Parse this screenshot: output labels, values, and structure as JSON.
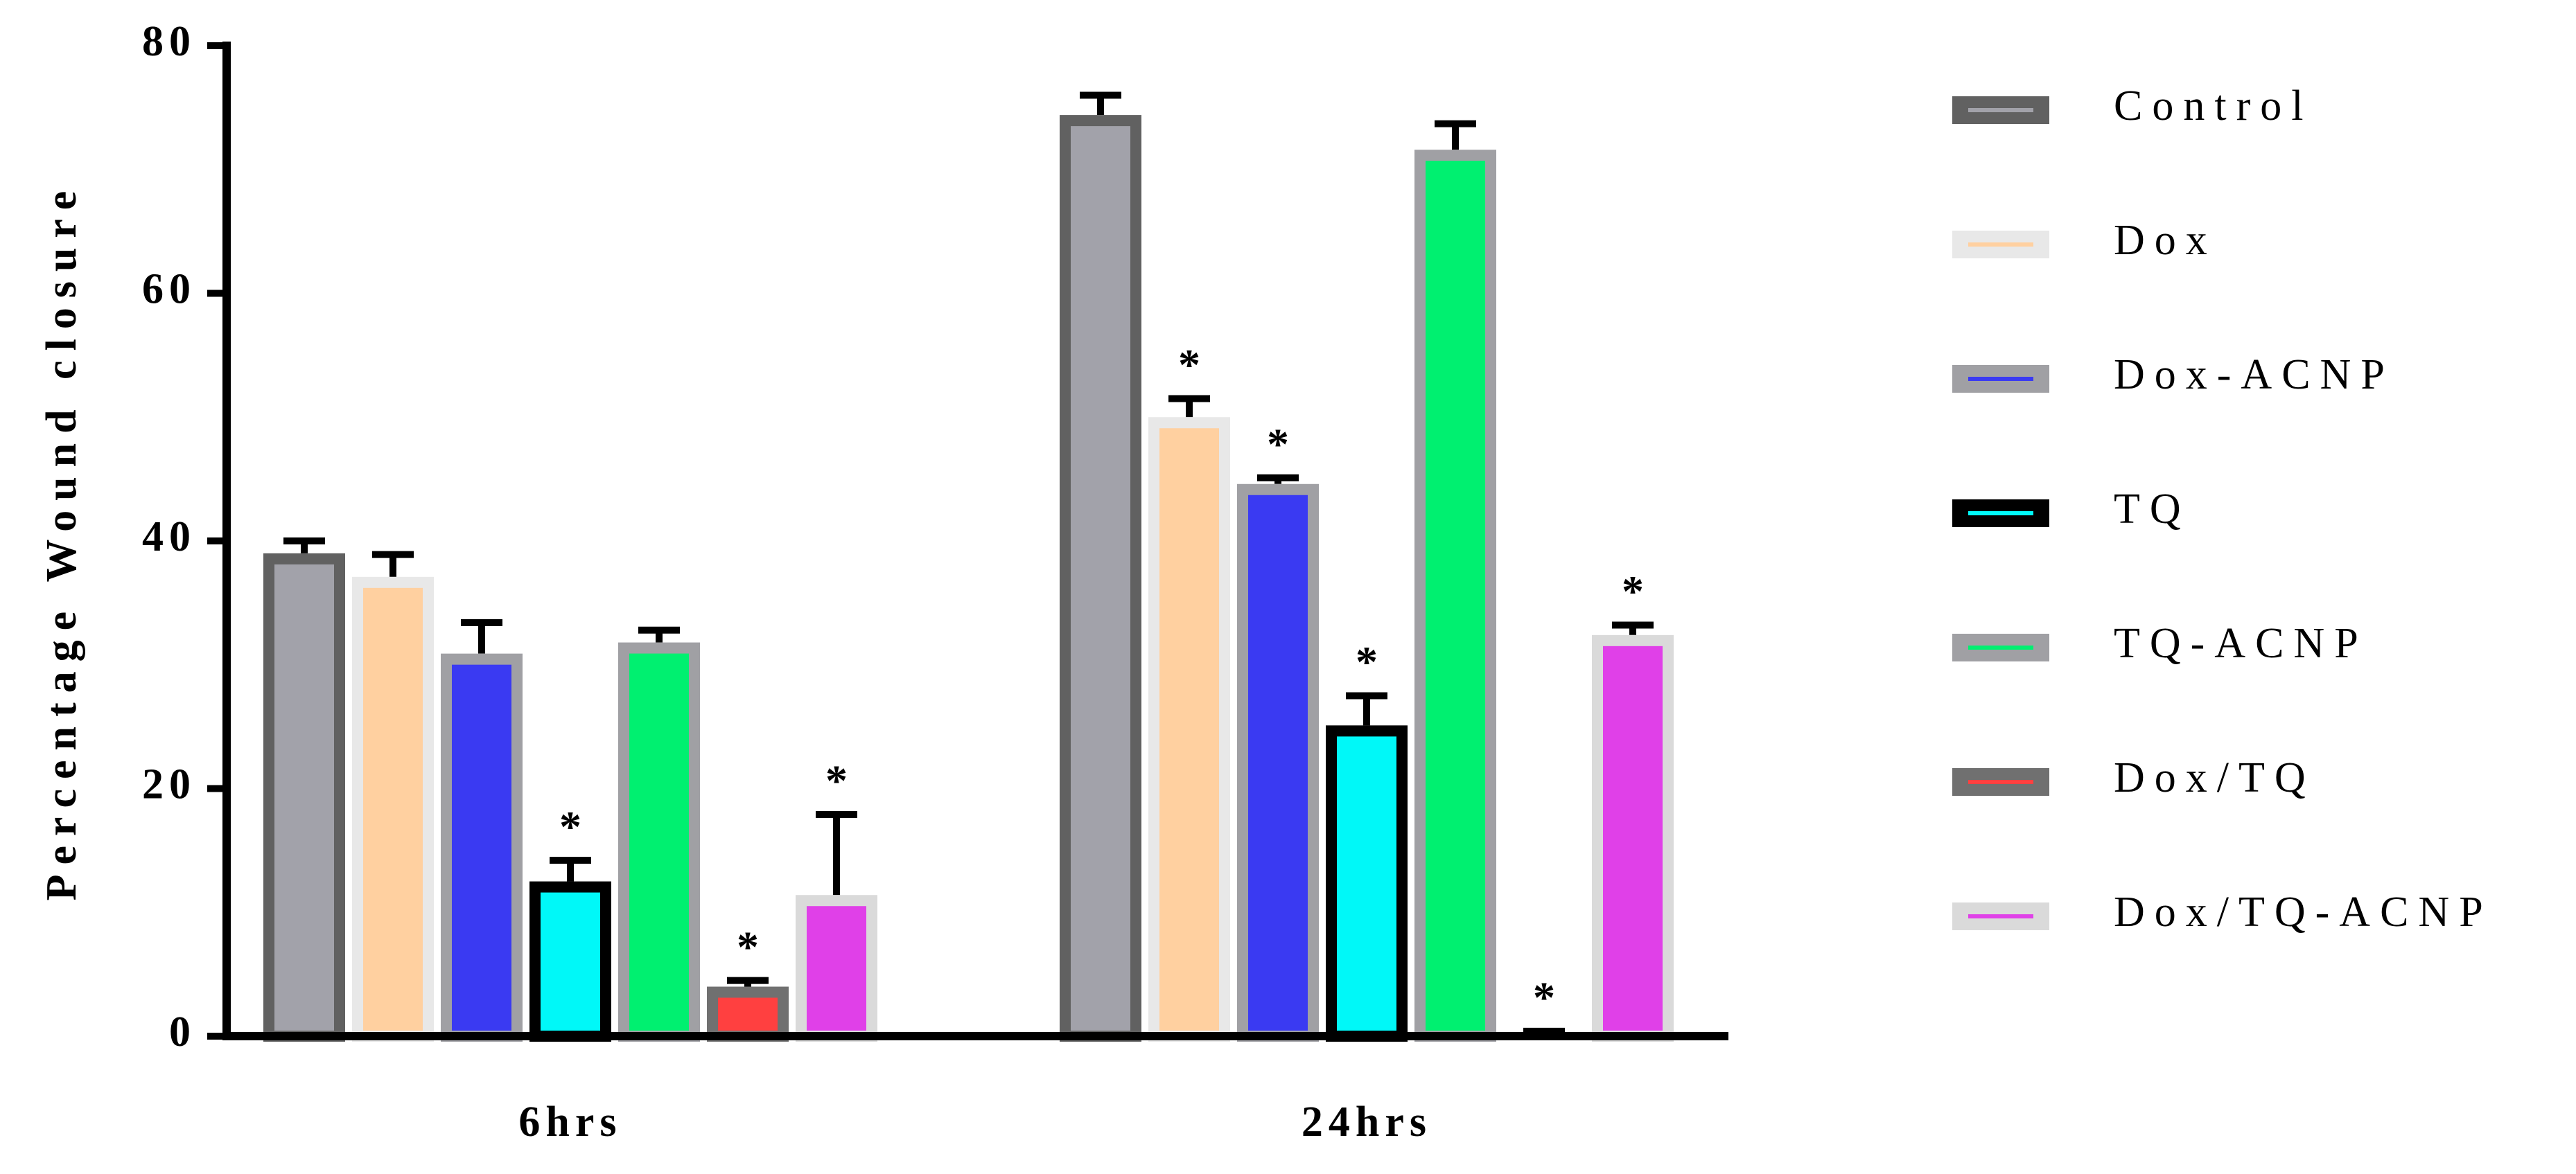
{
  "chart_data": {
    "type": "bar",
    "ylabel": "Percentage Wound closure",
    "categories": [
      "6hrs",
      "24hrs"
    ],
    "ylim": [
      0,
      80
    ],
    "yticks": [
      0,
      20,
      40,
      60,
      80
    ],
    "series": [
      {
        "name": "Control",
        "color": "#a2a2aa",
        "edgecolor": "#616161",
        "values": [
          39.0,
          74.4
        ],
        "errors": [
          1.0,
          1.6
        ],
        "annotations": [
          null,
          null
        ]
      },
      {
        "name": "Dox",
        "color": "#ffd0a0",
        "edgecolor": "#e8e8e8",
        "values": [
          37.1,
          50.0
        ],
        "errors": [
          1.8,
          1.5
        ],
        "annotations": [
          null,
          "*"
        ]
      },
      {
        "name": "Dox-ACNP",
        "color": "#3a3af2",
        "edgecolor": "#a0a0a4",
        "values": [
          30.9,
          44.6
        ],
        "errors": [
          2.5,
          0.5
        ],
        "annotations": [
          null,
          "*"
        ]
      },
      {
        "name": "TQ",
        "color": "#00f8f8",
        "edgecolor": "#000000",
        "values": [
          12.5,
          25.1
        ],
        "errors": [
          1.7,
          2.4
        ],
        "annotations": [
          "*",
          "*"
        ]
      },
      {
        "name": "TQ-ACNP",
        "color": "#00f070",
        "edgecolor": "#a0a0a4",
        "values": [
          31.8,
          71.6
        ],
        "errors": [
          1.0,
          2.1
        ],
        "annotations": [
          null,
          null
        ]
      },
      {
        "name": "Dox/TQ",
        "color": "#ff4040",
        "edgecolor": "#707070",
        "values": [
          4.0,
          0.3
        ],
        "errors": [
          0.5,
          0.1
        ],
        "annotations": [
          "*",
          "*"
        ]
      },
      {
        "name": "Dox/TQ-ACNP",
        "color": "#e040e8",
        "edgecolor": "#dadada",
        "values": [
          11.4,
          32.4
        ],
        "errors": [
          6.5,
          0.8
        ],
        "annotations": [
          "*",
          "*"
        ]
      }
    ]
  }
}
